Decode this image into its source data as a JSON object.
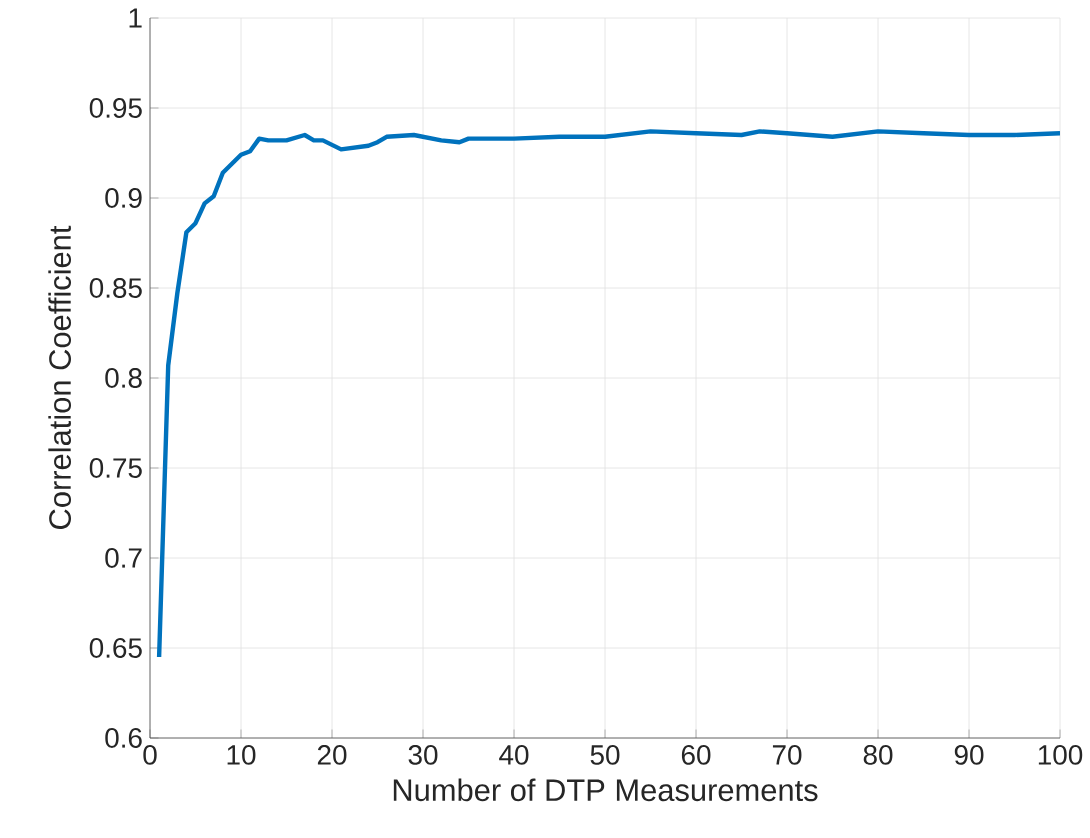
{
  "chart_data": {
    "type": "line",
    "xlabel": "Number of DTP Measurements",
    "ylabel": "Correlation Coefficient",
    "x": [
      1,
      2,
      3,
      4,
      5,
      6,
      7,
      8,
      9,
      10,
      11,
      12,
      13,
      15,
      17,
      18,
      19,
      21,
      24,
      25,
      26,
      29,
      32,
      34,
      35,
      40,
      45,
      50,
      55,
      60,
      65,
      67,
      70,
      75,
      80,
      85,
      90,
      95,
      100
    ],
    "series": [
      {
        "color": "#0072bd",
        "values": [
          0.645,
          0.807,
          0.847,
          0.881,
          0.886,
          0.897,
          0.901,
          0.914,
          0.919,
          0.924,
          0.926,
          0.933,
          0.932,
          0.932,
          0.935,
          0.932,
          0.932,
          0.927,
          0.929,
          0.931,
          0.934,
          0.935,
          0.932,
          0.931,
          0.933,
          0.933,
          0.934,
          0.934,
          0.937,
          0.936,
          0.935,
          0.937,
          0.936,
          0.934,
          0.937,
          0.936,
          0.935,
          0.935,
          0.936
        ]
      }
    ],
    "xlim": [
      0,
      100
    ],
    "ylim": [
      0.6,
      1
    ],
    "xticks": [
      0,
      10,
      20,
      30,
      40,
      50,
      60,
      70,
      80,
      90,
      100
    ],
    "yticks": [
      0.6,
      0.65,
      0.7,
      0.75,
      0.8,
      0.85,
      0.9,
      0.95,
      1
    ],
    "grid": true,
    "marker": "none",
    "line_style": "solid"
  }
}
